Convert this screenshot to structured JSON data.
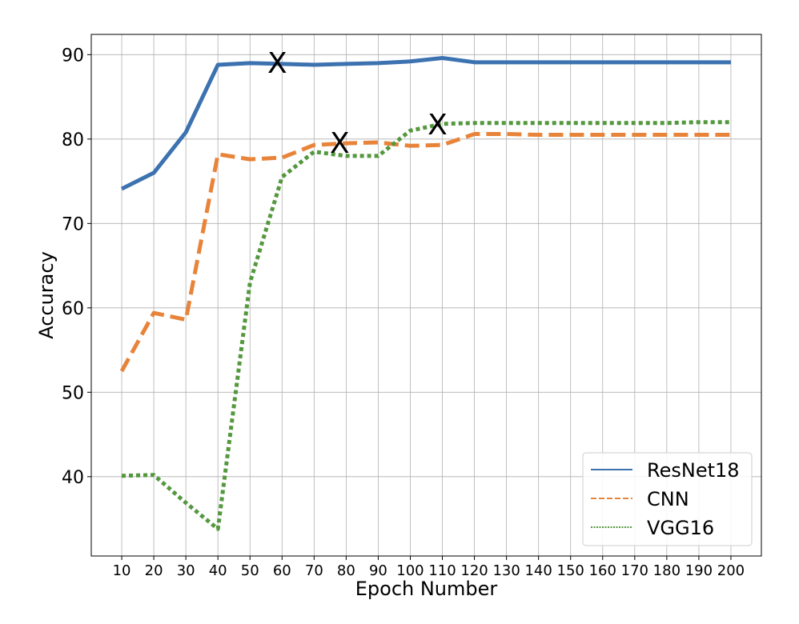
{
  "chart_data": {
    "type": "line",
    "title": "",
    "xlabel": "Epoch Number",
    "ylabel": "Accuracy",
    "x": [
      10,
      20,
      30,
      40,
      50,
      60,
      70,
      80,
      90,
      100,
      110,
      120,
      130,
      140,
      150,
      160,
      170,
      180,
      190,
      200
    ],
    "xticks": [
      "10",
      "20",
      "30",
      "40",
      "50",
      "60",
      "70",
      "80",
      "90",
      "100",
      "110",
      "120",
      "130",
      "140",
      "150",
      "160",
      "170",
      "180",
      "190",
      "200"
    ],
    "yticks": [
      "40",
      "50",
      "60",
      "70",
      "80",
      "90"
    ],
    "xlim": [
      0.5,
      209.5
    ],
    "ylim": [
      30.6,
      92.4
    ],
    "grid": true,
    "legend_position": "bottom-right",
    "series": [
      {
        "name": "ResNet18",
        "color": "#3c72b0",
        "style": "solid",
        "values": [
          74.1,
          76.0,
          80.8,
          88.8,
          89.0,
          88.9,
          88.8,
          88.9,
          89.0,
          89.2,
          89.6,
          89.1,
          89.1,
          89.1,
          89.1,
          89.1,
          89.1,
          89.1,
          89.1,
          89.1
        ]
      },
      {
        "name": "CNN",
        "color": "#e8843a",
        "style": "dashed",
        "values": [
          52.5,
          59.4,
          58.6,
          78.2,
          77.6,
          77.8,
          79.3,
          79.5,
          79.6,
          79.2,
          79.3,
          80.6,
          80.6,
          80.5,
          80.5,
          80.5,
          80.5,
          80.5,
          80.5,
          80.5
        ]
      },
      {
        "name": "VGG16",
        "color": "#54983e",
        "style": "dotted",
        "values": [
          40.1,
          40.2,
          36.9,
          33.8,
          63.0,
          75.5,
          78.5,
          78.0,
          78.0,
          81.0,
          81.8,
          81.9,
          81.9,
          81.9,
          81.9,
          81.9,
          81.9,
          81.9,
          82.0,
          82.0
        ]
      }
    ],
    "annotations": [
      {
        "text": "X",
        "x": 58.5,
        "y": 89.1
      },
      {
        "text": "X",
        "x": 78.0,
        "y": 79.6
      },
      {
        "text": "X",
        "x": 108.5,
        "y": 81.8
      }
    ]
  }
}
